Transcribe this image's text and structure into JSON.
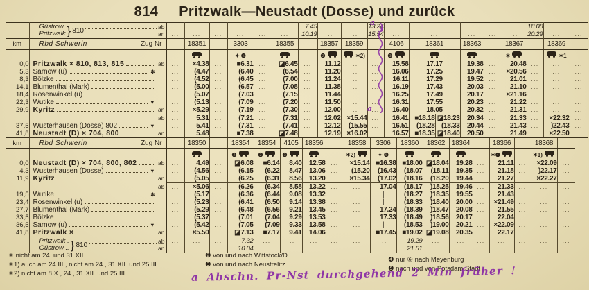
{
  "colors": {
    "paper": "#e9dfba",
    "ink": "#2b2318",
    "rule": "#3c321d",
    "purple": "#8f35a6"
  },
  "title": {
    "line_number": "814",
    "name": "Pritzwalk—Neustadt (Dosse) und zurück"
  },
  "tables": [
    {
      "name": "timetable-pritzwalk-neustadt",
      "cls": "t1",
      "kmw": 34,
      "stw": 198,
      "header": {
        "km": "km",
        "admin": "Rbd Schwerin",
        "zug": "Zug Nr"
      },
      "columns": [
        {
          "nr": "",
          "w": 26
        },
        {
          "nr": "18351",
          "w": 36,
          "sym": [
            "CAR"
          ]
        },
        {
          "nr": "",
          "w": 26
        },
        {
          "nr": "3303",
          "w": 38,
          "sym": [
            "✦",
            "❺"
          ]
        },
        {
          "nr": "",
          "w": 26
        },
        {
          "nr": "18355",
          "w": 38,
          "sym": [
            "CAR"
          ]
        },
        {
          "nr": "",
          "w": 28
        },
        {
          "nr": "18357",
          "w": 34,
          "sym": [
            "❷",
            "CAR"
          ]
        },
        {
          "nr": "18359",
          "w": 38,
          "sym": [
            "CAR",
            "✶2)"
          ]
        },
        {
          "nr": "",
          "w": 24
        },
        {
          "nr": "4106",
          "w": 36,
          "sym": [
            "❸",
            "CAR"
          ]
        },
        {
          "nr": "18361",
          "w": 38,
          "sym": [
            "CAR"
          ]
        },
        {
          "nr": "<",
          "w": 36
        },
        {
          "nr": "18363",
          "w": 34,
          "sym": [
            "CAR"
          ]
        },
        {
          "nr": "",
          "w": 26
        },
        {
          "nr": "18367",
          "w": 36,
          "sym": [
            "✶",
            "CAR"
          ]
        },
        {
          "nr": "",
          "w": 24
        },
        {
          "nr": "18369",
          "w": 38,
          "sym": [
            "CAR",
            "✶1"
          ]
        },
        {
          "nr": "",
          "w": 26
        }
      ],
      "pre_block": {
        "stations": [
          "Güstrow",
          "Pritzwalk"
        ],
        "line": "810",
        "suffixes": [
          "ab",
          "an"
        ],
        "rows": [
          [
            "...",
            "...",
            "...",
            "...",
            "...",
            "...",
            "7.45",
            "...",
            "...",
            "13.24",
            "...",
            "...",
            "<",
            "...",
            "...",
            "...",
            "18.08",
            "...",
            "..."
          ],
          [
            "...",
            "...",
            "...",
            "...",
            "...",
            "...",
            "10.19",
            "...",
            "...",
            "15.54",
            "...",
            "...",
            "<",
            "...",
            "...",
            "...",
            "20.29",
            "...",
            "..."
          ]
        ]
      },
      "rows": [
        {
          "km": "0,0",
          "label": "Pritzwalk × 810, 813, 815",
          "bold": true,
          "suffix": "ab",
          "cells": [
            "...",
            "×4.38",
            "...",
            "■6.31",
            "...",
            "◪6.45",
            "...",
            "11.12",
            "...",
            "...",
            "15.58",
            "17.17",
            "<",
            "19.38",
            "...",
            "20.48",
            "...",
            "...",
            "..."
          ]
        },
        {
          "km": "5,3",
          "label": "Sarnow (u)",
          "tail": "✽",
          "cells": [
            "...",
            "(4.47",
            "...",
            "(6.40",
            "...",
            "(6.54",
            "...",
            "11.20",
            "...",
            "...",
            "16.06",
            "17.25",
            "<",
            "19.47",
            "...",
            "×20.56",
            "...",
            "...",
            "..."
          ]
        },
        {
          "km": "8,3",
          "label": "Bölzke",
          "cells": [
            "...",
            "(4.52",
            "...",
            "(6.45",
            "...",
            "(7.00",
            "...",
            "11.24",
            "...",
            "...",
            "16.11",
            "17.29",
            "<",
            "19.52",
            "...",
            "21.01",
            "...",
            "...",
            "..."
          ]
        },
        {
          "km": "14,1",
          "label": "Blumenthal (Mark)",
          "cells": [
            "...",
            "(5.00",
            "...",
            "(6.57",
            "...",
            "(7.08",
            "...",
            "11.38",
            "...",
            "...",
            "16.19",
            "17.43",
            "<",
            "20.03",
            "...",
            "21.10",
            "...",
            "...",
            "..."
          ]
        },
        {
          "km": "18,4",
          "label": "Rosenwinkel (u)",
          "cells": [
            "...",
            "(5.07",
            "...",
            "(7.03",
            "...",
            "(7.15",
            "...",
            "11.44",
            "...",
            "...",
            "16.25",
            "17.49",
            "<",
            "20.17",
            "...",
            "×21.16",
            "...",
            "...",
            "..."
          ]
        },
        {
          "km": "22,3",
          "label": "Wutike",
          "tail": "▼",
          "cells": [
            "...",
            "(5.13",
            "...",
            "(7.09",
            "...",
            "(7.20",
            "...",
            "11.50",
            "...",
            "...",
            "16.31",
            "17.55",
            "<",
            "20.23",
            "...",
            "21.22",
            "...",
            "...",
            "..."
          ]
        },
        {
          "km": "29,9",
          "label": "Kyritz",
          "bold": true,
          "suffix": "an",
          "cells": [
            "...",
            "×5.29",
            "...",
            "(7.19",
            "...",
            "(7.30",
            "...",
            "12.00",
            "...",
            "...",
            "16.40",
            "18.05",
            "<",
            "20.32",
            "...",
            "21.31",
            "...",
            "...",
            "..."
          ]
        },
        {
          "km": "",
          "label": "",
          "suffix": "ab",
          "split": true,
          "cells": [
            "...",
            "5.31",
            "...",
            "(7.21",
            "...",
            "(7.31",
            "...",
            "12.02",
            "×15.44",
            "...",
            "16.41",
            "■18.18",
            "◪18.23",
            "20.34",
            "...",
            "21.33",
            "...",
            "×22.32",
            "..."
          ]
        },
        {
          "km": "37,5",
          "label": "Wusterhausen (Dosse) 802",
          "tail": "▼",
          "cells": [
            "...",
            "5.41",
            "...",
            "(7.31",
            "...",
            "(7.41",
            "...",
            "12.12",
            "(15.55",
            "...",
            "16.51",
            "(18.28",
            "(18.33",
            "20.44",
            "...",
            "21.43",
            "...",
            ")22.43",
            "..."
          ]
        },
        {
          "km": "41,8",
          "label": "Neustadt (D) × 704, 800",
          "bold": true,
          "suffix": "an",
          "end": true,
          "cells": [
            "...",
            "5.48",
            "...",
            "■7.38",
            "...",
            "◪7.48",
            "...",
            "12.19",
            "×16.02",
            "...",
            "16.57",
            "■18.35",
            "◪18.40",
            "20.50",
            "...",
            "21.49",
            "...",
            "×22.50",
            "..."
          ]
        }
      ],
      "post_block": null
    },
    {
      "name": "timetable-neustadt-pritzwalk",
      "cls": "t2",
      "kmw": 34,
      "stw": 198,
      "header": {
        "km": "km",
        "admin": "Rbd Schwerin",
        "zug": "Zug Nr"
      },
      "columns": [
        {
          "nr": "",
          "w": 26
        },
        {
          "nr": "18350",
          "w": 36,
          "sym": [
            "CAR"
          ]
        },
        {
          "nr": "",
          "w": 26
        },
        {
          "nr": "18354",
          "w": 38,
          "sym": [
            "❷",
            "CAR"
          ]
        },
        {
          "nr": "18354",
          "w": 38,
          "sym": [
            "❷",
            "CAR"
          ]
        },
        {
          "nr": "4105",
          "w": 32,
          "sym": [
            "❸",
            "CAR"
          ]
        },
        {
          "nr": "18356",
          "w": 34,
          "sym": [
            "CAR"
          ]
        },
        {
          "nr": "",
          "w": 26
        },
        {
          "nr": "18358",
          "w": 38,
          "sym": [
            "✶2)",
            "CAR"
          ]
        },
        {
          "nr": "3306",
          "w": 38,
          "sym": [
            "✦",
            "❺"
          ]
        },
        {
          "nr": "18360",
          "w": 38,
          "sym": [
            "CAR"
          ]
        },
        {
          "nr": "18362",
          "w": 38,
          "sym": [
            "CAR"
          ]
        },
        {
          "nr": "18364",
          "w": 34,
          "sym": [
            "CAR"
          ]
        },
        {
          "nr": "",
          "w": 24
        },
        {
          "nr": "18366",
          "w": 36,
          "sym": [
            "✶❹",
            "CAR"
          ]
        },
        {
          "nr": "",
          "w": 24
        },
        {
          "nr": "18368",
          "w": 38,
          "sym": [
            "✶1)",
            "CAR"
          ]
        },
        {
          "nr": "",
          "w": 26
        }
      ],
      "pre_block": null,
      "rows": [
        {
          "km": "0,0",
          "label": "Neustadt (D) × 704, 800, 802",
          "bold": true,
          "suffix": "ab",
          "cells": [
            "...",
            "4.49",
            "...",
            "◪6.08",
            "■6.14",
            "8.40",
            "12.58",
            "...",
            "×15.14",
            "■16.38",
            "■18.00",
            "◪18.04",
            "19.28",
            "...",
            "21.11",
            "...",
            "×22.09",
            "..."
          ]
        },
        {
          "km": "4,3",
          "label": "Wusterhausen (Dosse)",
          "tail": "▼",
          "cells": [
            "...",
            "(4.56",
            "...",
            "(6.15",
            "(6.22",
            "8.47",
            "13.06",
            "...",
            "(15.20",
            "(16.43",
            "(18.07",
            "(18.11",
            "19.35",
            "...",
            "21.18",
            "...",
            ")22.17",
            "..."
          ]
        },
        {
          "km": "11,9",
          "label": "Kyritz",
          "bold": true,
          "suffix": "an",
          "cells": [
            "...",
            "(5.05",
            "...",
            "(6.25",
            "(6.31",
            "8.56",
            "13.20",
            "...",
            "×15.34",
            "(17.02",
            "(18.16",
            "(18.20",
            "19.44",
            "...",
            "21.27",
            "...",
            "×22.27",
            "..."
          ]
        },
        {
          "km": "",
          "label": "",
          "suffix": "ab",
          "split": true,
          "cells": [
            "...",
            "×5.06",
            "...",
            "(6.26",
            "(6.34",
            "8.58",
            "13.22",
            "...",
            "...",
            "17.04",
            "(18.17",
            ")18.25",
            "19.46",
            "...",
            "21.33",
            "...",
            "...",
            "..."
          ]
        },
        {
          "km": "19,5",
          "label": "Wutike",
          "tail": "✽",
          "cells": [
            "...",
            "(5.17",
            "...",
            "(6.36",
            "(6.44",
            "9.08",
            "13.32",
            "...",
            "...",
            "|",
            "(18.27",
            ")18.35",
            "19.55",
            "...",
            "21.43",
            "...",
            "...",
            "..."
          ]
        },
        {
          "km": "23,4",
          "label": "Rosenwinkel (u)",
          "cells": [
            "...",
            "(5.23",
            "...",
            "(6.41",
            "(6.50",
            "9.14",
            "13.38",
            "...",
            "...",
            "|",
            "(18.33",
            ")18.40",
            "20.00",
            "...",
            "×21.49",
            "...",
            "...",
            "..."
          ]
        },
        {
          "km": "27,7",
          "label": "Blumenthal (Mark)",
          "cells": [
            "...",
            "(5.29",
            "...",
            "(6.48",
            "(6.56",
            "9.21",
            "13.45",
            "...",
            "...",
            "17.24",
            "(18.39",
            ")18.47",
            "20.08",
            "...",
            "21.55",
            "...",
            "...",
            "..."
          ]
        },
        {
          "km": "33,5",
          "label": "Bölzke",
          "cells": [
            "...",
            "(5.37",
            "...",
            "(7.01",
            "(7.04",
            "9.29",
            "13.53",
            "...",
            "...",
            "17.33",
            "(18.49",
            ")18.56",
            "20.17",
            "...",
            "22.04",
            "...",
            "...",
            "..."
          ]
        },
        {
          "km": "36,5",
          "label": "Sarnow (u)",
          "tail": "▼",
          "cells": [
            "...",
            "(5.42",
            "...",
            "(7.05",
            "(7.09",
            "9.33",
            "13.58",
            "...",
            "...",
            "|",
            "(18.53",
            ")19.00",
            "20.21",
            "...",
            "×22.09",
            "...",
            "...",
            "..."
          ]
        },
        {
          "km": "41,8",
          "label": "Pritzwalk ×",
          "bold": true,
          "suffix": "an",
          "end": true,
          "cells": [
            "...",
            "×5.50",
            "...",
            "◪7.13",
            "■7.17",
            "9.41",
            "14.06",
            "...",
            "...",
            "■17.45",
            "■19.02",
            "◪19.08",
            "20.35",
            "...",
            "22.17",
            "...",
            "...",
            "..."
          ]
        }
      ],
      "post_block": {
        "stations": [
          "Pritzwalk .",
          "Güstrow .."
        ],
        "line": "810",
        "suffixes": [
          "ab",
          "an"
        ],
        "rows": [
          [
            "...",
            "...",
            "...",
            "7.32",
            "...",
            "...",
            "...",
            "...",
            "...",
            "...",
            "19.29",
            "...",
            "...",
            "...",
            "...",
            "...",
            "...",
            "..."
          ],
          [
            "...",
            "...",
            "...",
            "10.04",
            "...",
            "...",
            "...",
            "...",
            "...",
            "...",
            "21.51",
            "...",
            "...",
            "...",
            "...",
            "...",
            "...",
            "..."
          ]
        ]
      }
    }
  ],
  "legend": {
    "left": [
      "✶ nicht am 24. und 31.XII.",
      "✶1) auch am 24.III., nicht am 24., 31.XII. und 25.III.",
      "✶2) nicht am 8.X., 24., 31.XII. und 25.III."
    ],
    "mid": [
      "❷ von und nach Wittstock/D",
      "❸ von und nach Neustrelitz"
    ],
    "right": [
      "❹ nur ⑥ nach Meyenburg",
      "❺ nach und von Potsdam Stadt"
    ]
  },
  "annotations": {
    "handwritten": "a Abschn. Pr-Nst durchgehend 2 Min früher !",
    "squiggle_letter_top": "a",
    "squiggle_letter_bottom": "a",
    "correction_digit": "3"
  }
}
